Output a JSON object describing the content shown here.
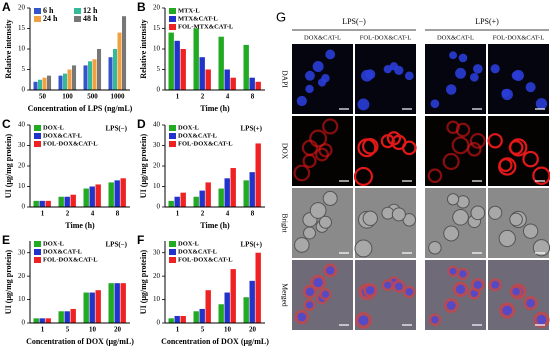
{
  "chart_data": [
    {
      "panel": "A",
      "type": "bar",
      "ylabel": "Relative intensity",
      "xlabel": "Concentration of LPS (ng/mL)",
      "categories": [
        "50",
        "100",
        "500",
        "1000"
      ],
      "series": [
        {
          "name": "6 h",
          "color": "#3355cc",
          "values": [
            2,
            3.5,
            6,
            8
          ]
        },
        {
          "name": "12 h",
          "color": "#33bb99",
          "values": [
            2.5,
            4,
            7,
            10
          ]
        },
        {
          "name": "24 h",
          "color": "#f0a040",
          "values": [
            3,
            5,
            7.5,
            14
          ]
        },
        {
          "name": "48 h",
          "color": "#777777",
          "values": [
            3.5,
            6,
            10,
            18
          ]
        }
      ],
      "ylim": [
        0,
        20
      ],
      "yticks": [
        0,
        5,
        10,
        15,
        20
      ],
      "legend_columns": 2
    },
    {
      "panel": "B",
      "type": "bar",
      "ylabel": "Relative intensity",
      "xlabel": "Time (h)",
      "categories": [
        "1",
        "2",
        "4",
        "8"
      ],
      "series": [
        {
          "name": "MTX-L",
          "color": "#22aa22",
          "values": [
            14,
            15,
            13,
            11
          ]
        },
        {
          "name": "MTX&CAT-L",
          "color": "#2233cc",
          "values": [
            12,
            8,
            5,
            3
          ]
        },
        {
          "name": "FOL-MTX&CAT-L",
          "color": "#ee2222",
          "values": [
            10,
            5,
            3,
            2
          ]
        }
      ],
      "ylim": [
        0,
        20
      ],
      "yticks": [
        0,
        5,
        10,
        15,
        20
      ],
      "legend_columns": 1
    },
    {
      "panel": "C",
      "type": "bar",
      "ylabel": "UI (μg/mg protein)",
      "xlabel": "Time (h)",
      "legend_title": "LPS(−)",
      "categories": [
        "1",
        "2",
        "4",
        "8"
      ],
      "series": [
        {
          "name": "DOX-L",
          "color": "#22aa22",
          "values": [
            3,
            5,
            9,
            12
          ]
        },
        {
          "name": "DOX&CAT-L",
          "color": "#2233cc",
          "values": [
            3,
            5,
            10,
            13
          ]
        },
        {
          "name": "FOL-DOX&CAT-L",
          "color": "#ee2222",
          "values": [
            3,
            6,
            11,
            14
          ]
        }
      ],
      "ylim": [
        0,
        40
      ],
      "yticks": [
        0,
        10,
        20,
        30,
        40
      ],
      "legend_columns": 1
    },
    {
      "panel": "D",
      "type": "bar",
      "ylabel": "UI (μg/mg protein)",
      "xlabel": "Time (h)",
      "legend_title": "LPS(+)",
      "categories": [
        "1",
        "2",
        "4",
        "8"
      ],
      "series": [
        {
          "name": "DOX-L",
          "color": "#22aa22",
          "values": [
            3,
            5,
            9,
            13
          ]
        },
        {
          "name": "DOX&CAT-L",
          "color": "#2233cc",
          "values": [
            5,
            8,
            14,
            17
          ]
        },
        {
          "name": "FOL-DOX&CAT-L",
          "color": "#ee2222",
          "values": [
            7,
            12,
            19,
            31
          ]
        }
      ],
      "ylim": [
        0,
        40
      ],
      "yticks": [
        0,
        10,
        20,
        30,
        40
      ],
      "legend_columns": 1
    },
    {
      "panel": "E",
      "type": "bar",
      "ylabel": "UI (μg/mg protein)",
      "xlabel": "Concentration of DOX (μg/mL)",
      "legend_title": "LPS(−)",
      "categories": [
        "1",
        "5",
        "10",
        "20"
      ],
      "series": [
        {
          "name": "DOX-L",
          "color": "#22aa22",
          "values": [
            2,
            5,
            13,
            17
          ]
        },
        {
          "name": "DOX&CAT-L",
          "color": "#2233cc",
          "values": [
            2,
            5,
            13,
            17
          ]
        },
        {
          "name": "FOL-DOX&CAT-L",
          "color": "#ee2222",
          "values": [
            2,
            6,
            14,
            17
          ]
        }
      ],
      "ylim": [
        0,
        35
      ],
      "yticks": [
        0,
        10,
        20,
        30
      ],
      "legend_columns": 1
    },
    {
      "panel": "F",
      "type": "bar",
      "ylabel": "UI (μg/mg protein)",
      "xlabel": "Concentration of DOX (μg/mL)",
      "legend_title": "LPS(+)",
      "categories": [
        "1",
        "5",
        "10",
        "20"
      ],
      "series": [
        {
          "name": "DOX-L",
          "color": "#22aa22",
          "values": [
            2,
            5,
            8,
            11
          ]
        },
        {
          "name": "DOX&CAT-L",
          "color": "#2233cc",
          "values": [
            3,
            6,
            13,
            18
          ]
        },
        {
          "name": "FOL-DOX&CAT-L",
          "color": "#ee2222",
          "values": [
            3,
            14,
            23,
            30
          ]
        }
      ],
      "ylim": [
        0,
        35
      ],
      "yticks": [
        0,
        10,
        20,
        30
      ],
      "legend_columns": 1
    }
  ],
  "panel_g": {
    "label": "G",
    "conditions": [
      "LPS(−)",
      "LPS(+)"
    ],
    "columns": [
      "DOX&CAT-L",
      "FOL-DOX&CAT-L",
      "DOX&CAT-L",
      "FOL-DOX&CAT-L"
    ],
    "rows": [
      "DAPI",
      "DOX",
      "Bright",
      "Merged"
    ]
  }
}
